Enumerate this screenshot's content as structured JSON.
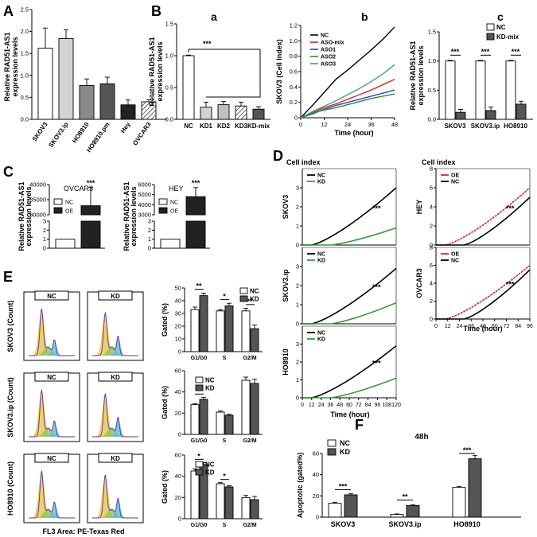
{
  "figure": {
    "panel_labels": {
      "A": "A",
      "B": "B",
      "C": "C",
      "D": "D",
      "E": "E",
      "F": "F"
    },
    "sub_labels": {
      "a": "a",
      "b": "b",
      "c": "c"
    }
  },
  "chart_data": [
    {
      "id": "A",
      "type": "bar",
      "ylabel": "Relative RAD51-AS1 expression levels",
      "categories": [
        "SKOV3",
        "SKOV3.ip",
        "HO8910",
        "HO8910.pm",
        "Hey",
        "OVCAR3"
      ],
      "values": [
        1.62,
        1.84,
        0.77,
        0.81,
        0.33,
        0.4
      ],
      "errors": [
        0.46,
        0.2,
        0.15,
        0.15,
        0.11,
        0.05
      ],
      "fills": [
        "#ffffff",
        "#d3d3d3",
        "#8a8a8a",
        "#555555",
        "#222222",
        "hatch"
      ],
      "ylim": [
        0,
        2.5
      ],
      "yticks": [
        "0.0",
        "0.5",
        "1.0",
        "1.5",
        "2.0",
        "2.5"
      ]
    },
    {
      "id": "Ba",
      "type": "bar",
      "ylabel": "Relative RAD51-AS1 expression levels",
      "categories": [
        "NC",
        "KD1",
        "KD2",
        "KD3",
        "KD-mix"
      ],
      "values": [
        1.0,
        0.19,
        0.23,
        0.21,
        0.16
      ],
      "errors": [
        0.01,
        0.08,
        0.05,
        0.06,
        0.04
      ],
      "ylim": [
        0,
        1.5
      ],
      "yticks": [
        "0.0",
        "0.5",
        "1.0",
        "1.5"
      ],
      "significance": "***"
    },
    {
      "id": "Bb",
      "type": "line",
      "ylabel": "SKOV3 (Cell Index)",
      "xlabel": "Time (hour)",
      "xlim": [
        0,
        48
      ],
      "ylim": [
        0,
        1.2
      ],
      "xticks": [
        "0",
        "12",
        "24",
        "36",
        "48"
      ],
      "yticks": [
        "0",
        "0.2",
        "0.4",
        "0.6",
        "0.8",
        "1.0",
        "1.2"
      ],
      "series": [
        {
          "name": "NC",
          "color": "#000000",
          "x": [
            0,
            6,
            12,
            18,
            24,
            30,
            36,
            42,
            48
          ],
          "y": [
            0,
            0.16,
            0.33,
            0.5,
            0.62,
            0.75,
            0.88,
            1.02,
            1.18
          ]
        },
        {
          "name": "ASO-mix",
          "color": "#d42a2a",
          "x": [
            0,
            6,
            12,
            18,
            24,
            30,
            36,
            42,
            48
          ],
          "y": [
            0,
            0.07,
            0.13,
            0.18,
            0.24,
            0.3,
            0.36,
            0.43,
            0.5
          ]
        },
        {
          "name": "ASO1",
          "color": "#3d3dc4",
          "x": [
            0,
            6,
            12,
            18,
            24,
            30,
            36,
            42,
            48
          ],
          "y": [
            0,
            0.05,
            0.11,
            0.16,
            0.2,
            0.24,
            0.28,
            0.32,
            0.36
          ]
        },
        {
          "name": "ASO2",
          "color": "#2e8b2e",
          "x": [
            0,
            6,
            12,
            18,
            24,
            30,
            36,
            42,
            48
          ],
          "y": [
            0,
            0.06,
            0.1,
            0.13,
            0.17,
            0.21,
            0.25,
            0.28,
            0.31
          ]
        },
        {
          "name": "ASO3",
          "color": "#3aa58a",
          "x": [
            0,
            6,
            12,
            18,
            24,
            30,
            36,
            42,
            48
          ],
          "y": [
            0,
            0.08,
            0.15,
            0.22,
            0.3,
            0.38,
            0.47,
            0.57,
            0.69
          ]
        }
      ]
    },
    {
      "id": "Bc",
      "type": "bar",
      "ylabel": "Relative RAD51-AS1 expression levels",
      "categories": [
        "SKOV3",
        "SKOV3.ip",
        "HO8910"
      ],
      "series": [
        {
          "name": "NC",
          "color": "#ffffff",
          "values": [
            1.0,
            1.0,
            1.0
          ],
          "errors": [
            0.01,
            0.01,
            0.01
          ]
        },
        {
          "name": "KD-mix",
          "color": "#555555",
          "values": [
            0.12,
            0.15,
            0.26
          ],
          "errors": [
            0.05,
            0.06,
            0.05
          ]
        }
      ],
      "ylim": [
        0,
        1.5
      ],
      "yticks": [
        "0.0",
        "0.5",
        "1.0",
        "1.5"
      ],
      "significance": [
        "***",
        "***",
        "***"
      ]
    },
    {
      "id": "C1",
      "type": "bar",
      "title": "OVCAR3",
      "ylabel": "Relative RAD51-AS1 expression levels",
      "categories": [
        "NC",
        "OE"
      ],
      "values": [
        1.0,
        33000
      ],
      "errors": [
        0.05,
        6000
      ],
      "yticks_upper": [
        "30000",
        "35000",
        "40000"
      ],
      "yticks_lower": [
        "0",
        "1",
        "2",
        "3"
      ],
      "legend": [
        "NC",
        "OE"
      ],
      "significance": "***"
    },
    {
      "id": "C2",
      "type": "bar",
      "title": "HEY",
      "ylabel": "Relative RAD51-AS1 expression levels",
      "categories": [
        "NC",
        "OE"
      ],
      "values": [
        1.0,
        4800
      ],
      "errors": [
        0.05,
        900
      ],
      "yticks_upper": [
        "3000",
        "4000",
        "5000",
        "6000"
      ],
      "yticks_lower": [
        "0",
        "1",
        "2",
        "3"
      ],
      "legend": [
        "NC",
        "OE"
      ],
      "significance": "***"
    },
    {
      "id": "D",
      "type": "line",
      "title": "Cell index",
      "xlabel": "Time (hour)",
      "left_xticks": [
        "0",
        "12",
        "24",
        "36",
        "48",
        "60",
        "72",
        "84",
        "96",
        "108",
        "120"
      ],
      "right_xticks": [
        "0",
        "12",
        "24",
        "36",
        "48",
        "60",
        "72",
        "84",
        "96"
      ],
      "yticks": [
        "0",
        "1",
        "2",
        "3"
      ],
      "panels": [
        {
          "name": "SKOV3",
          "series": [
            "NC",
            "KD"
          ],
          "end": [
            3.0,
            0.9
          ],
          "significance": "***"
        },
        {
          "name": "SKOV3.ip",
          "series": [
            "NC",
            "KD"
          ],
          "end": [
            2.9,
            1.1
          ],
          "significance": "***"
        },
        {
          "name": "HO8910",
          "series": [
            "NC",
            "KD"
          ],
          "end": [
            2.9,
            1.1
          ],
          "significance": "***"
        },
        {
          "name": "HEY",
          "series": [
            "OE",
            "NC"
          ],
          "end": [
            6.0,
            5.0
          ],
          "significance": "***"
        },
        {
          "name": "OVCAR3",
          "series": [
            "OE",
            "NC"
          ],
          "end": [
            6.0,
            5.5
          ],
          "significance": "***"
        }
      ]
    },
    {
      "id": "E",
      "type": "bar",
      "ylabel": "Gated (%)",
      "categories": [
        "G1/G0",
        "S",
        "G2/M"
      ],
      "yticks": [
        "0",
        "10",
        "20",
        "30",
        "40",
        "50"
      ],
      "hist_labels": [
        "NC",
        "KD"
      ],
      "hist_row_labels": [
        "SKOV3 (Count)",
        "SKOV3.ip (Count)",
        "HO8910 (Count)"
      ],
      "hist_xlabel": "FL3 Area: PE-Texas Red",
      "panels": [
        {
          "name": "SKOV3",
          "ylim": [
            0,
            50
          ],
          "nc": [
            33,
            32,
            32
          ],
          "kd": [
            44,
            36,
            18
          ],
          "nc_err": [
            2,
            1,
            2
          ],
          "kd_err": [
            2,
            2,
            3
          ],
          "significance": [
            "**",
            "*",
            "**"
          ]
        },
        {
          "name": "SKOV3.ip",
          "ylim": [
            0,
            60
          ],
          "nc": [
            28,
            21,
            51
          ],
          "kd": [
            33,
            18,
            48
          ],
          "nc_err": [
            1,
            1,
            3
          ],
          "kd_err": [
            2,
            1,
            4
          ],
          "significance": [
            "*",
            "",
            ""
          ]
        },
        {
          "name": "HO8910",
          "ylim": [
            0,
            60
          ],
          "nc": [
            45,
            33,
            20
          ],
          "kd": [
            51,
            30,
            18
          ],
          "nc_err": [
            2,
            1,
            2
          ],
          "kd_err": [
            2,
            1,
            3
          ],
          "significance": [
            "*",
            "*",
            ""
          ]
        }
      ],
      "legend": [
        "NC",
        "KD"
      ]
    },
    {
      "id": "F",
      "type": "bar",
      "title": "48h",
      "ylabel": "Apoptotic (gated%)",
      "categories": [
        "SKOV3",
        "SKOV3.ip",
        "HO8910"
      ],
      "series": [
        {
          "name": "NC",
          "values": [
            13,
            2.5,
            28
          ],
          "errors": [
            1,
            0.5,
            1
          ]
        },
        {
          "name": "KD",
          "values": [
            21,
            11,
            55
          ],
          "errors": [
            1,
            0.5,
            3
          ]
        }
      ],
      "ylim": [
        0,
        60
      ],
      "yticks": [
        "0",
        "20",
        "40",
        "60"
      ],
      "significance": [
        "***",
        "**",
        "***"
      ]
    }
  ]
}
